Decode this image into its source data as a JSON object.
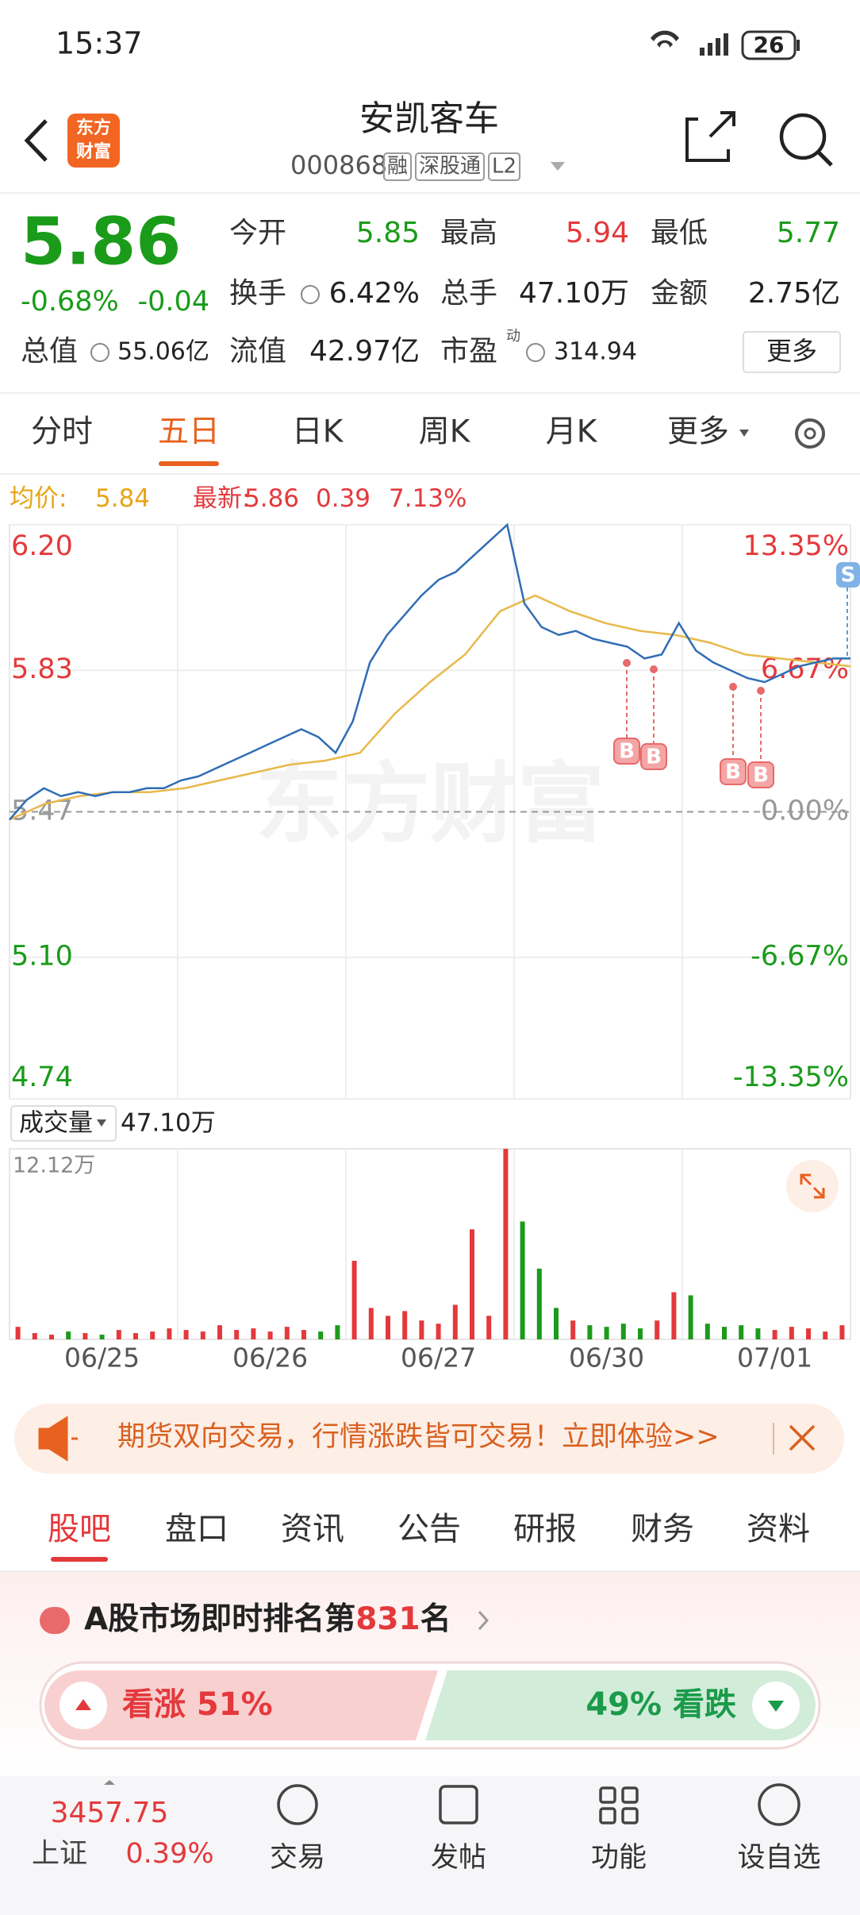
{
  "status_bar": {
    "time": "15:37",
    "battery": "26"
  },
  "header": {
    "logo": [
      "东方",
      "财富"
    ],
    "title": "安凯客车",
    "code": "000868",
    "badges": [
      "融",
      "深股通",
      "L2"
    ]
  },
  "quote": {
    "price": "5.86",
    "change_pct": "-0.68%",
    "change": "-0.04",
    "fields": [
      {
        "label": "今开",
        "value": "5.85"
      },
      {
        "label": "最高",
        "value": "5.94"
      },
      {
        "label": "最低",
        "value": "5.77"
      },
      {
        "label": "换手",
        "value": "6.42%"
      },
      {
        "label": "总手",
        "value": "47.10万"
      },
      {
        "label": "金额",
        "value": "2.75亿"
      },
      {
        "label": "总值",
        "value": "55.06亿"
      },
      {
        "label": "流值",
        "value": "42.97亿"
      },
      {
        "label": "市盈",
        "value": "314.94"
      }
    ],
    "pe_sup": "动",
    "more": "更多"
  },
  "tabs": [
    "分时",
    "五日",
    "日K",
    "周K",
    "月K",
    "更多"
  ],
  "active_tab": 1,
  "legend": {
    "avg_label": "均价:",
    "avg": "5.84",
    "latest_label": "最新:",
    "latest": "5.86",
    "pct": "0.39",
    "amp": "7.13%"
  },
  "chart": {
    "watermark": "东方财富",
    "ylim": [
      4.74,
      6.2
    ],
    "yticks": [
      {
        "value": 6.2,
        "label": "6.20"
      },
      {
        "value": 5.83,
        "label": "5.83"
      },
      {
        "value": 5.47,
        "label": "5.47"
      },
      {
        "value": 5.1,
        "label": "5.10"
      },
      {
        "value": 4.74,
        "label": "4.74"
      }
    ],
    "pct_ticks": [
      "13.35%",
      "6.67%",
      "0.00%",
      "-6.67%",
      "-13.35%"
    ],
    "price": [
      5.45,
      5.5,
      5.53,
      5.51,
      5.52,
      5.51,
      5.52,
      5.52,
      5.53,
      5.53,
      5.55,
      5.56,
      5.58,
      5.6,
      5.62,
      5.64,
      5.66,
      5.68,
      5.66,
      5.62,
      5.7,
      5.85,
      5.92,
      5.97,
      6.02,
      6.06,
      6.08,
      6.12,
      6.16,
      6.2,
      6.0,
      5.94,
      5.92,
      5.93,
      5.91,
      5.9,
      5.89,
      5.86,
      5.87,
      5.95,
      5.88,
      5.85,
      5.83,
      5.81,
      5.8,
      5.82,
      5.84,
      5.85,
      5.86,
      5.86
    ],
    "avg": [
      5.45,
      5.49,
      5.51,
      5.52,
      5.52,
      5.53,
      5.55,
      5.57,
      5.59,
      5.6,
      5.62,
      5.72,
      5.8,
      5.87,
      5.98,
      6.02,
      5.98,
      5.95,
      5.93,
      5.92,
      5.9,
      5.87,
      5.86,
      5.85,
      5.84
    ],
    "trade_marks": [
      "B",
      "B",
      "B",
      "B",
      "S"
    ]
  },
  "volume": {
    "label": "成交量",
    "total": "47.10万",
    "max_label": "12.12万",
    "ylim": [
      0,
      12.12
    ],
    "values": [
      0.8,
      0.4,
      0.3,
      0.5,
      0.4,
      0.3,
      0.6,
      0.4,
      0.5,
      0.7,
      0.6,
      0.5,
      0.9,
      0.6,
      0.7,
      0.5,
      0.8,
      0.6,
      0.5,
      0.9,
      5.0,
      2.0,
      1.5,
      1.8,
      1.2,
      1.0,
      2.2,
      7.0,
      1.5,
      12.12,
      7.5,
      4.5,
      2.0,
      1.2,
      0.9,
      0.8,
      1.0,
      0.7,
      1.2,
      3.0,
      2.8,
      1.0,
      0.8,
      0.9,
      0.7,
      0.6,
      0.8,
      0.7,
      0.5,
      0.9
    ]
  },
  "dates": [
    "06/25",
    "06/26",
    "06/27",
    "06/30",
    "07/01"
  ],
  "banner": "期货双向交易，行情涨跌皆可交易！立即体验>>",
  "section_tabs": [
    "股吧",
    "盘口",
    "资讯",
    "公告",
    "研报",
    "财务",
    "资料"
  ],
  "rank": {
    "prefix": "A股市场即时排名第",
    "rank": "831",
    "suffix": "名"
  },
  "vote": {
    "up": "看涨 51%",
    "down": "49% 看跌"
  },
  "nav": {
    "index_value": "3457.75",
    "index_name": "上证",
    "index_change": "0.39%",
    "items": [
      "交易",
      "发帖",
      "功能",
      "设自选"
    ]
  }
}
